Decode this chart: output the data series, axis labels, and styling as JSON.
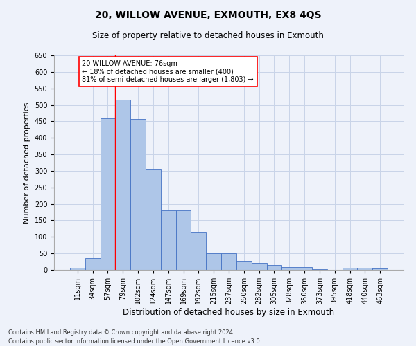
{
  "title": "20, WILLOW AVENUE, EXMOUTH, EX8 4QS",
  "subtitle": "Size of property relative to detached houses in Exmouth",
  "xlabel": "Distribution of detached houses by size in Exmouth",
  "ylabel": "Number of detached properties",
  "bar_labels": [
    "11sqm",
    "34sqm",
    "57sqm",
    "79sqm",
    "102sqm",
    "124sqm",
    "147sqm",
    "169sqm",
    "192sqm",
    "215sqm",
    "237sqm",
    "260sqm",
    "282sqm",
    "305sqm",
    "328sqm",
    "350sqm",
    "373sqm",
    "395sqm",
    "418sqm",
    "440sqm",
    "463sqm"
  ],
  "bar_heights": [
    7,
    35,
    460,
    515,
    457,
    307,
    180,
    180,
    115,
    50,
    50,
    27,
    20,
    14,
    9,
    9,
    3,
    1,
    7,
    7,
    4
  ],
  "bar_color": "#aec6e8",
  "bar_edge_color": "#4472c4",
  "grid_color": "#c8d4e8",
  "background_color": "#eef2fa",
  "vline_color": "red",
  "annotation_text": "20 WILLOW AVENUE: 76sqm\n← 18% of detached houses are smaller (400)\n81% of semi-detached houses are larger (1,803) →",
  "annotation_box_color": "white",
  "annotation_box_edge_color": "red",
  "ylim": [
    0,
    650
  ],
  "yticks": [
    0,
    50,
    100,
    150,
    200,
    250,
    300,
    350,
    400,
    450,
    500,
    550,
    600,
    650
  ],
  "footnote1": "Contains HM Land Registry data © Crown copyright and database right 2024.",
  "footnote2": "Contains public sector information licensed under the Open Government Licence v3.0.",
  "title_fontsize": 10,
  "subtitle_fontsize": 8.5,
  "xlabel_fontsize": 8.5,
  "ylabel_fontsize": 8,
  "tick_fontsize": 7,
  "annot_fontsize": 7
}
